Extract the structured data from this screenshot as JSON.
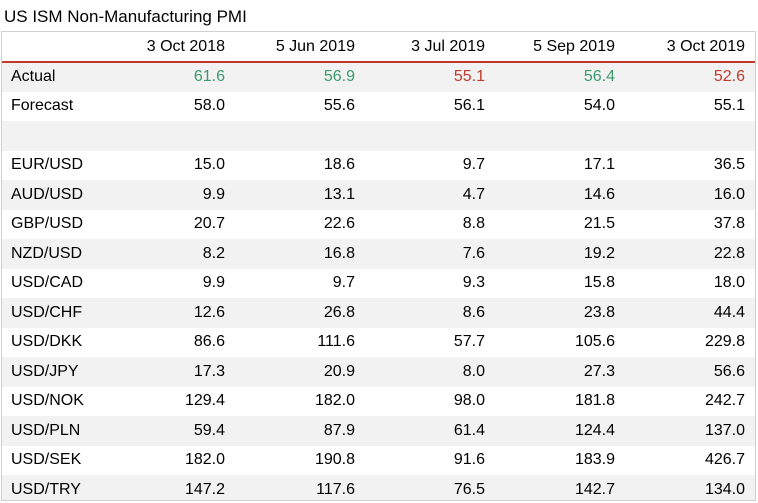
{
  "title": "US ISM Non-Manufacturing PMI",
  "columns": [
    "3 Oct 2018",
    "5 Jun 2019",
    "3 Jul 2019",
    "5 Sep 2019",
    "3 Oct 2019"
  ],
  "colors": {
    "beat": "#3a9a6a",
    "miss": "#c0392b",
    "header_rule": "#c0392b"
  },
  "actual": {
    "label": "Actual",
    "values": [
      "61.6",
      "56.9",
      "55.1",
      "56.4",
      "52.6"
    ],
    "outcomes": [
      "beat",
      "beat",
      "miss",
      "beat",
      "miss"
    ]
  },
  "forecast": {
    "label": "Forecast",
    "values": [
      "58.0",
      "55.6",
      "56.1",
      "54.0",
      "55.1"
    ]
  },
  "pairs": [
    {
      "label": "EUR/USD",
      "values": [
        "15.0",
        "18.6",
        "9.7",
        "17.1",
        "36.5"
      ]
    },
    {
      "label": "AUD/USD",
      "values": [
        "9.9",
        "13.1",
        "4.7",
        "14.6",
        "16.0"
      ]
    },
    {
      "label": "GBP/USD",
      "values": [
        "20.7",
        "22.6",
        "8.8",
        "21.5",
        "37.8"
      ]
    },
    {
      "label": "NZD/USD",
      "values": [
        "8.2",
        "16.8",
        "7.6",
        "19.2",
        "22.8"
      ]
    },
    {
      "label": "USD/CAD",
      "values": [
        "9.9",
        "9.7",
        "9.3",
        "15.8",
        "18.0"
      ]
    },
    {
      "label": "USD/CHF",
      "values": [
        "12.6",
        "26.8",
        "8.6",
        "23.8",
        "44.4"
      ]
    },
    {
      "label": "USD/DKK",
      "values": [
        "86.6",
        "111.6",
        "57.7",
        "105.6",
        "229.8"
      ]
    },
    {
      "label": "USD/JPY",
      "values": [
        "17.3",
        "20.9",
        "8.0",
        "27.3",
        "56.6"
      ]
    },
    {
      "label": "USD/NOK",
      "values": [
        "129.4",
        "182.0",
        "98.0",
        "181.8",
        "242.7"
      ]
    },
    {
      "label": "USD/PLN",
      "values": [
        "59.4",
        "87.9",
        "61.4",
        "124.4",
        "137.0"
      ]
    },
    {
      "label": "USD/SEK",
      "values": [
        "182.0",
        "190.8",
        "91.6",
        "183.9",
        "426.7"
      ]
    },
    {
      "label": "USD/TRY",
      "values": [
        "147.2",
        "117.6",
        "76.5",
        "142.7",
        "134.0"
      ]
    }
  ]
}
